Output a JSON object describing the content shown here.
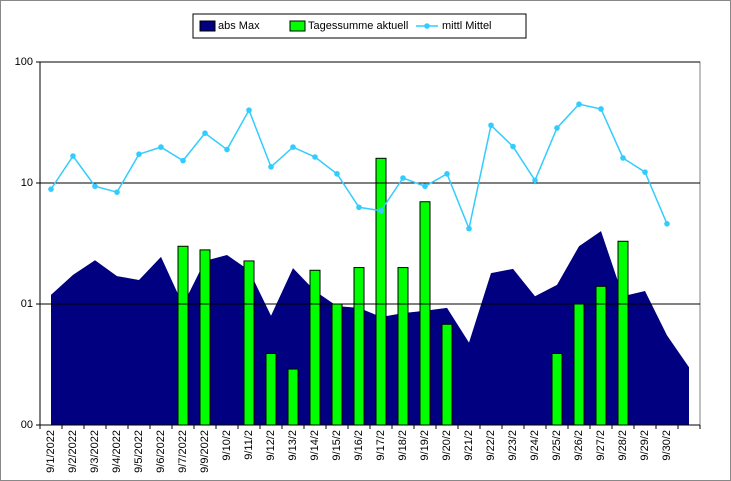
{
  "chart_data": {
    "type": "combo",
    "categories": [
      "9/1/2022",
      "9/2/2022",
      "9/3/2022",
      "9/4/2022",
      "9/5/2022",
      "9/6/2022",
      "9/7/2022",
      "9/9/2022",
      "9/10/2",
      "9/11/2",
      "9/12/2",
      "9/13/2",
      "9/14/2",
      "9/15/2",
      "9/16/2",
      "9/17/2",
      "9/18/2",
      "9/19/2",
      "9/20/2",
      "9/21/2",
      "9/22/2",
      "9/23/2",
      "9/24/2",
      "9/25/2",
      "9/26/2",
      "9/27/2",
      "9/28/2",
      "9/29/2",
      "9/30/2",
      null
    ],
    "series": [
      {
        "name": "abs Max",
        "kind": "area",
        "color": "#000080",
        "values": [
          1.19,
          1.74,
          2.3,
          1.7,
          1.58,
          2.45,
          0.98,
          2.27,
          2.54,
          1.9,
          0.8,
          1.98,
          1.28,
          0.96,
          0.93,
          0.78,
          0.84,
          0.88,
          0.93,
          0.48,
          1.8,
          1.95,
          1.16,
          1.44,
          3.0,
          4.0,
          1.16,
          1.28,
          0.55,
          0.3
        ]
      },
      {
        "name": "Tagessumme aktuell",
        "kind": "bar",
        "color": "#00ff00",
        "values": [
          null,
          null,
          null,
          null,
          null,
          null,
          3,
          2.8,
          null,
          2.27,
          0.39,
          0.29,
          1.9,
          1,
          2,
          16,
          2,
          7,
          0.68,
          null,
          null,
          null,
          null,
          0.39,
          1,
          1.4,
          3.3,
          null,
          null,
          null
        ]
      },
      {
        "name": "mittl Mittel",
        "kind": "line",
        "color": "#33ccff",
        "values": [
          8.9,
          16.7,
          9.4,
          8.4,
          17.3,
          19.8,
          15.3,
          25.8,
          18.9,
          40,
          13.6,
          19.8,
          16.4,
          11.9,
          6.3,
          5.9,
          11,
          9.4,
          11.9,
          4.2,
          30,
          20,
          10.5,
          28.5,
          44.8,
          40.9,
          16.1,
          12.3,
          4.6,
          null
        ]
      }
    ],
    "log_scale": true,
    "ylim": [
      0.1,
      100
    ],
    "yticks": [
      {
        "value": 0.1,
        "label": "00"
      },
      {
        "value": 1,
        "label": "01"
      },
      10,
      100
    ],
    "grid": true,
    "legend": "top"
  }
}
